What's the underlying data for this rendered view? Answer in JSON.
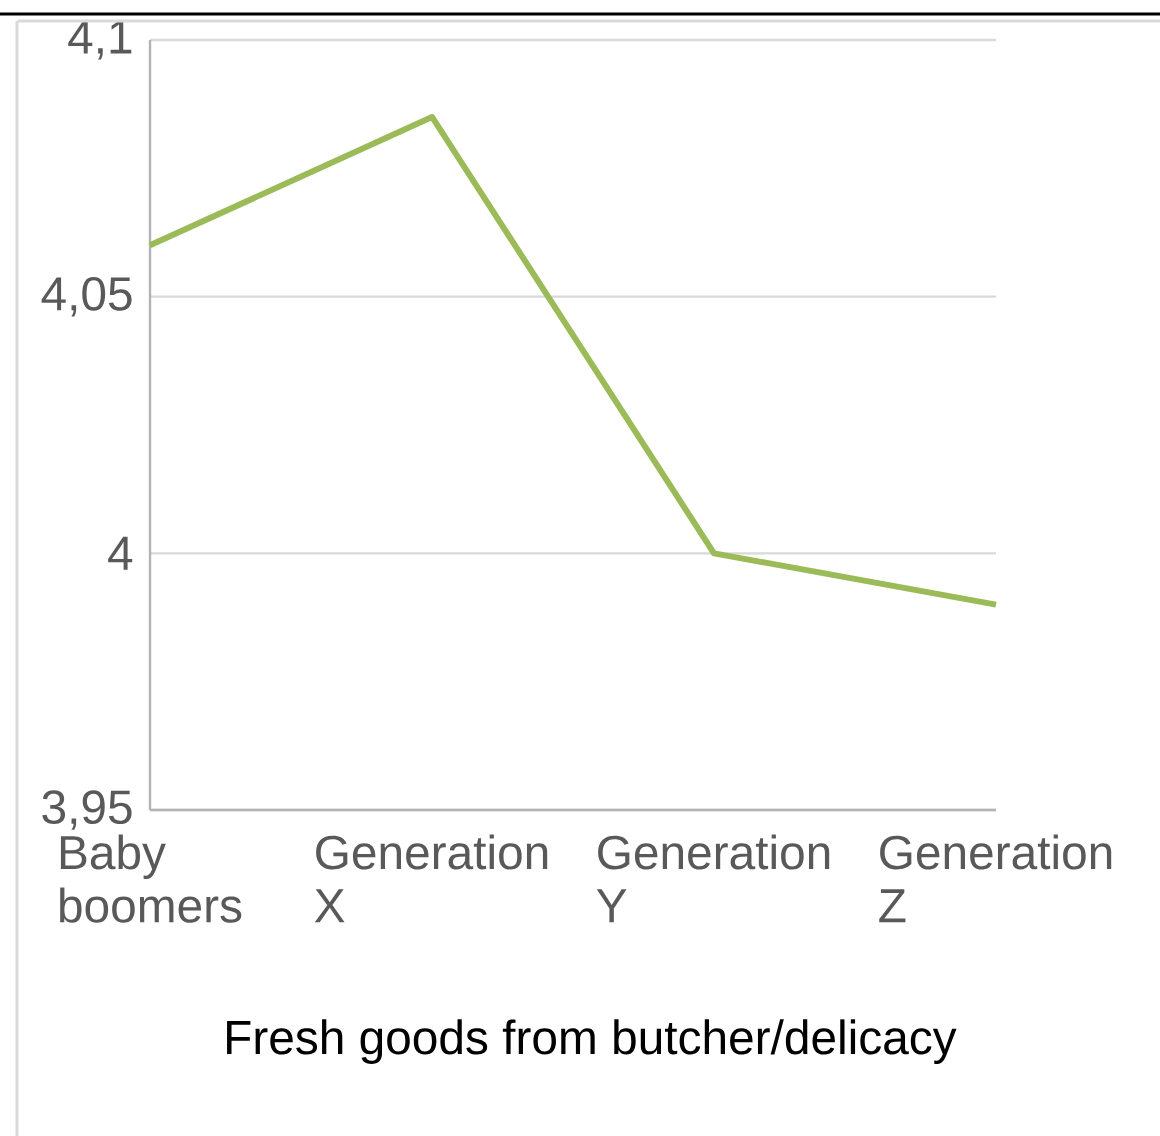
{
  "chart_data": {
    "type": "line",
    "xlabel": "Fresh goods from butcher/delicacy",
    "categories": [
      "Baby boomers",
      "Generation X",
      "Generation Y",
      "Generation Z"
    ],
    "series": [
      {
        "color": "#9bbb59",
        "values": [
          4.06,
          4.085,
          4.0,
          3.99
        ]
      }
    ],
    "ylim": [
      3.95,
      4.1
    ],
    "yticks": [
      {
        "value": 3.95,
        "label": "3,95"
      },
      {
        "value": 4.0,
        "label": "4"
      },
      {
        "value": 4.05,
        "label": "4,05"
      },
      {
        "value": 4.1,
        "label": "4,1"
      }
    ],
    "grid": "y",
    "legend": false,
    "marker": "none",
    "line_style": "solid"
  }
}
